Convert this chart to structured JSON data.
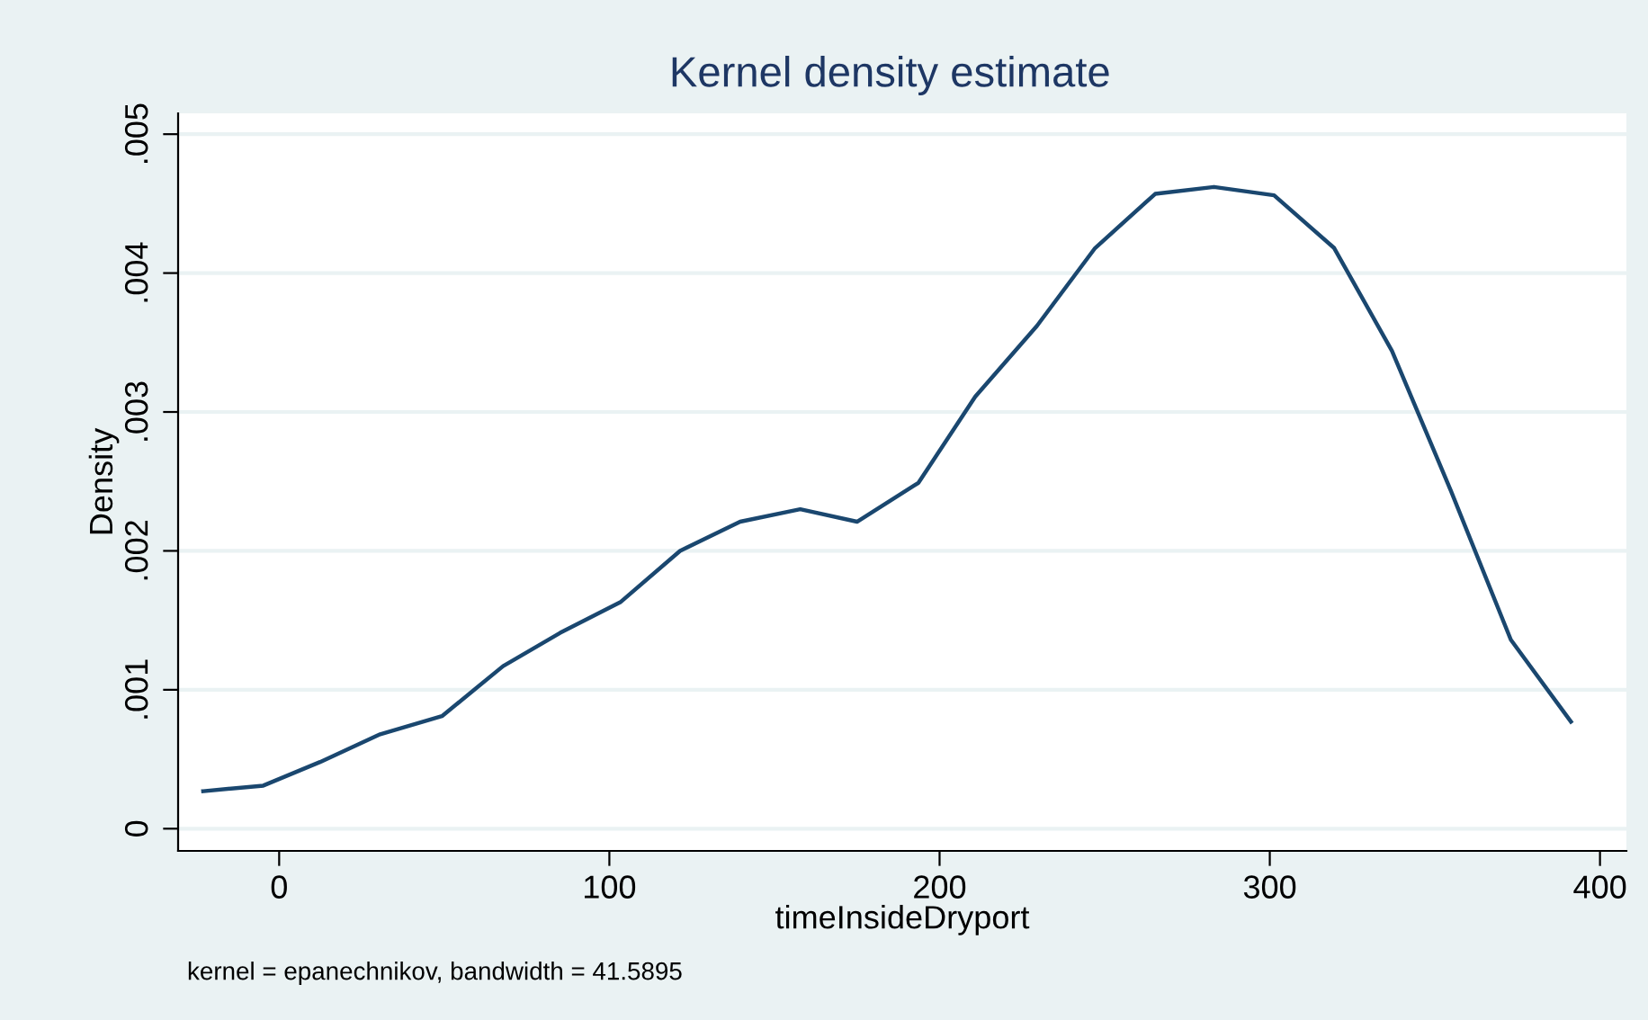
{
  "chart_data": {
    "type": "line",
    "title": "Kernel density estimate",
    "xlabel": "timeInsideDryport",
    "ylabel": "Density",
    "annotations": [
      "kernel = epanechnikov, bandwidth = 41.5895"
    ],
    "x": [
      -23.0,
      -4.8,
      12.4,
      30.6,
      49.3,
      67.8,
      85.1,
      103.3,
      121.4,
      139.6,
      157.8,
      175.0,
      193.6,
      210.8,
      229.5,
      247.1,
      265.3,
      283.1,
      301.3,
      319.5,
      337.0,
      354.9,
      373.0,
      391.2
    ],
    "series": [
      {
        "color": "#1a476f",
        "values": [
          0.00027,
          0.00031,
          0.00048,
          0.00068,
          0.00081,
          0.00117,
          0.00141,
          0.00163,
          0.002,
          0.00221,
          0.0023,
          0.00221,
          0.00249,
          0.00311,
          0.00362,
          0.00418,
          0.00457,
          0.00462,
          0.00456,
          0.00418,
          0.00344,
          0.00243,
          0.00136,
          0.00077
        ]
      }
    ],
    "xlim": [
      -30.6,
      408
    ],
    "ylim": [
      -0.00016,
      0.00515
    ],
    "xticks": [
      0,
      100,
      200,
      300,
      400
    ],
    "yticks": [
      0,
      {
        "value": 0.001,
        "label": ".001"
      },
      {
        "value": 0.002,
        "label": ".002"
      },
      {
        "value": 0.003,
        "label": ".003"
      },
      {
        "value": 0.004,
        "label": ".004"
      },
      {
        "value": 0.005,
        "label": ".005"
      }
    ],
    "grid": "y",
    "legend": false,
    "marker": "none",
    "line_style": "solid"
  }
}
